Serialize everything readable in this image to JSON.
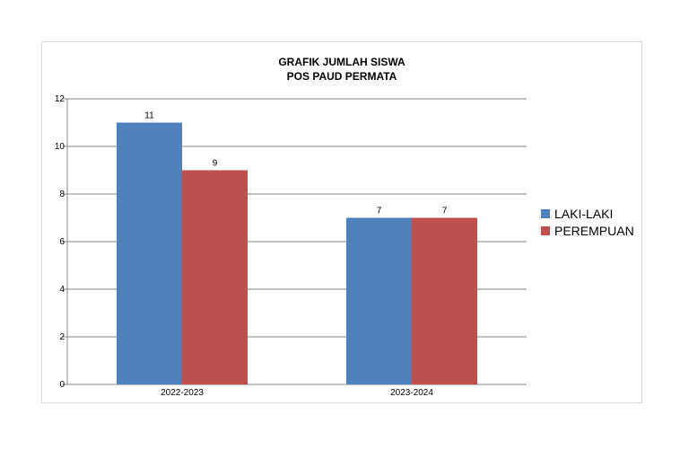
{
  "chart_data": {
    "type": "bar",
    "title": "GRAFIK JUMLAH SISWA",
    "subtitle": "POS PAUD PERMATA",
    "categories": [
      "2022-2023",
      "2023-2024"
    ],
    "series": [
      {
        "name": "LAKI-LAKI",
        "values": [
          11,
          7
        ],
        "color": "#4F81BD"
      },
      {
        "name": "PEREMPUAN",
        "values": [
          9,
          7
        ],
        "color": "#C0504D"
      }
    ],
    "y_ticks": [
      "0",
      "2",
      "4",
      "6",
      "8",
      "10",
      "12"
    ],
    "ylim": [
      0,
      12
    ],
    "grid": true,
    "legend_position": "right"
  }
}
